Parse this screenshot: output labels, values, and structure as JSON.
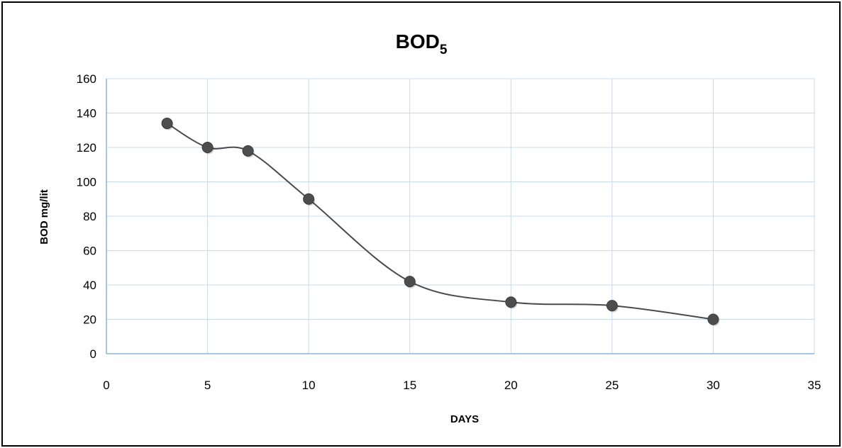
{
  "chart_data": {
    "type": "scatter",
    "title": "BOD",
    "title_subscript": "5",
    "xlabel": "DAYS",
    "ylabel": "BOD mg/lit",
    "xlim": [
      0,
      35
    ],
    "ylim": [
      0,
      160
    ],
    "x_ticks": [
      "0",
      "5",
      "10",
      "15",
      "20",
      "25",
      "30",
      "35"
    ],
    "y_ticks": [
      "0",
      "20",
      "40",
      "60",
      "80",
      "100",
      "120",
      "140",
      "160"
    ],
    "grid": true,
    "smooth_line": true,
    "colors": {
      "grid": "#c9d9ec",
      "axis": "#8eb4de",
      "line": "#4a4a4a",
      "marker": "#4d4d4d"
    },
    "series": [
      {
        "x": [
          3,
          5,
          7,
          10,
          15,
          20,
          25,
          30
        ],
        "y": [
          134,
          120,
          118,
          90,
          42,
          30,
          28,
          20
        ]
      }
    ]
  }
}
